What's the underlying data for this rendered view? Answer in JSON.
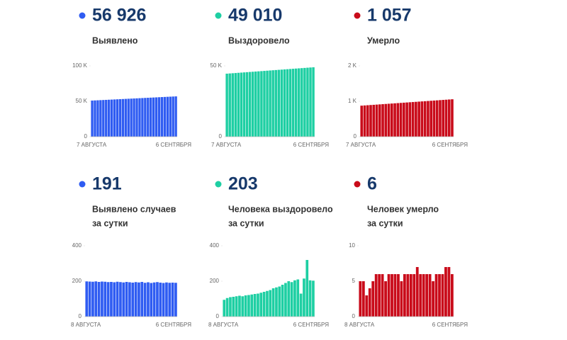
{
  "chart_data": [
    {
      "type": "bar",
      "headline": "56 926",
      "label": [
        "Выявлено"
      ],
      "color": "#2f5cf2",
      "categories": [
        "7 АВГУСТА",
        null,
        null,
        null,
        null,
        null,
        null,
        null,
        null,
        null,
        null,
        null,
        null,
        null,
        null,
        null,
        null,
        null,
        null,
        null,
        null,
        null,
        null,
        null,
        null,
        null,
        null,
        null,
        null,
        null,
        "6 СЕНТЯБРЯ"
      ],
      "values": [
        51046,
        51242,
        51438,
        51634,
        51830,
        52026,
        52222,
        52418,
        52614,
        52810,
        53006,
        53202,
        53398,
        53594,
        53790,
        53986,
        54182,
        54378,
        54574,
        54770,
        54966,
        55162,
        55358,
        55554,
        55750,
        55946,
        56142,
        56338,
        56534,
        56730,
        56926
      ],
      "ylim": [
        0,
        100000
      ],
      "yticks": [
        0,
        {
          "value": 50000,
          "label": "50 K"
        },
        {
          "value": 100000,
          "label": "100 K"
        }
      ]
    },
    {
      "type": "bar",
      "headline": "49 010",
      "label": [
        "Выздоровело"
      ],
      "color": "#1ecfa3",
      "categories": [
        "7 АВГУСТА",
        null,
        null,
        null,
        null,
        null,
        null,
        null,
        null,
        null,
        null,
        null,
        null,
        null,
        null,
        null,
        null,
        null,
        null,
        null,
        null,
        null,
        null,
        null,
        null,
        null,
        null,
        null,
        null,
        null,
        "6 СЕНТЯБРЯ"
      ],
      "values": [
        44510,
        44660,
        44810,
        44960,
        45110,
        45260,
        45410,
        45560,
        45710,
        45860,
        46010,
        46160,
        46310,
        46460,
        46610,
        46760,
        46910,
        47060,
        47210,
        47360,
        47510,
        47660,
        47810,
        47960,
        48110,
        48260,
        48410,
        48560,
        48710,
        48860,
        49010
      ],
      "ylim": [
        0,
        50000
      ],
      "yticks": [
        0,
        {
          "value": 50000,
          "label": "50 K"
        }
      ]
    },
    {
      "type": "bar",
      "headline": "1 057",
      "label": [
        "Умерло"
      ],
      "color": "#c90b1a",
      "categories": [
        "7 АВГУСТА",
        null,
        null,
        null,
        null,
        null,
        null,
        null,
        null,
        null,
        null,
        null,
        null,
        null,
        null,
        null,
        null,
        null,
        null,
        null,
        null,
        null,
        null,
        null,
        null,
        null,
        null,
        null,
        null,
        null,
        "6 СЕНТЯБРЯ"
      ],
      "values": [
        877,
        883,
        889,
        895,
        901,
        907,
        913,
        919,
        925,
        931,
        937,
        943,
        949,
        955,
        961,
        967,
        973,
        979,
        985,
        991,
        997,
        1003,
        1009,
        1015,
        1021,
        1027,
        1033,
        1039,
        1045,
        1051,
        1057
      ],
      "ylim": [
        0,
        2000
      ],
      "yticks": [
        0,
        {
          "value": 1000,
          "label": "1 K"
        },
        {
          "value": 2000,
          "label": "2 K"
        }
      ]
    },
    {
      "type": "bar",
      "headline": "191",
      "label": [
        "Выявлено случаев",
        "за сутки"
      ],
      "color": "#2f5cf2",
      "categories": [
        "8 АВГУСТА",
        null,
        null,
        null,
        null,
        null,
        null,
        null,
        null,
        null,
        null,
        null,
        null,
        null,
        null,
        null,
        null,
        null,
        null,
        null,
        null,
        null,
        null,
        null,
        null,
        null,
        null,
        null,
        null,
        "6 СЕНТЯБРЯ"
      ],
      "values": [
        199,
        198,
        197,
        199,
        196,
        198,
        197,
        195,
        196,
        194,
        197,
        195,
        193,
        196,
        194,
        192,
        195,
        193,
        196,
        191,
        194,
        190,
        193,
        195,
        192,
        190,
        193,
        191,
        192,
        191
      ],
      "ylim": [
        0,
        400
      ],
      "yticks": [
        0,
        200,
        400
      ]
    },
    {
      "type": "bar",
      "headline": "203",
      "label": [
        "Человека выздоровело",
        "за сутки"
      ],
      "color": "#1ecfa3",
      "categories": [
        "8 АВГУСТА",
        null,
        null,
        null,
        null,
        null,
        null,
        null,
        null,
        null,
        null,
        null,
        null,
        null,
        null,
        null,
        null,
        null,
        null,
        null,
        null,
        null,
        null,
        null,
        null,
        null,
        null,
        null,
        null,
        "6 СЕНТЯБРЯ"
      ],
      "values": [
        95,
        105,
        110,
        112,
        115,
        118,
        115,
        120,
        122,
        125,
        128,
        130,
        135,
        140,
        145,
        150,
        160,
        165,
        170,
        180,
        190,
        200,
        195,
        205,
        210,
        130,
        215,
        320,
        205,
        203
      ],
      "ylim": [
        0,
        400
      ],
      "yticks": [
        0,
        200,
        400
      ]
    },
    {
      "type": "bar",
      "headline": "6",
      "label": [
        "Человек умерло",
        "за сутки"
      ],
      "color": "#c90b1a",
      "categories": [
        "8 АВГУСТА",
        null,
        null,
        null,
        null,
        null,
        null,
        null,
        null,
        null,
        null,
        null,
        null,
        null,
        null,
        null,
        null,
        null,
        null,
        null,
        null,
        null,
        null,
        null,
        null,
        null,
        null,
        null,
        null,
        "6 СЕНТЯБРЯ"
      ],
      "values": [
        5,
        5,
        3,
        4,
        5,
        6,
        6,
        6,
        5,
        6,
        6,
        6,
        6,
        5,
        6,
        6,
        6,
        6,
        7,
        6,
        6,
        6,
        6,
        5,
        6,
        6,
        6,
        7,
        7,
        6
      ],
      "ylim": [
        0,
        10
      ],
      "yticks": [
        0,
        5,
        10
      ]
    }
  ]
}
